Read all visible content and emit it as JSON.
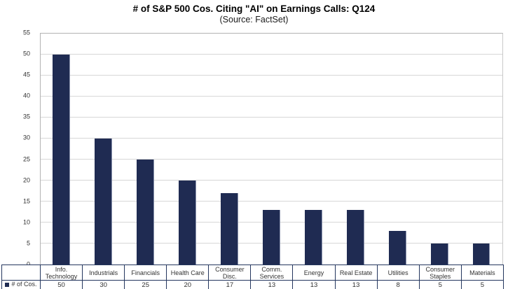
{
  "title": "# of S&P 500 Cos. Citing \"AI\" on Earnings Calls: Q124",
  "subtitle": "(Source: FactSet)",
  "legend_label": "# of Cos.",
  "colors": {
    "bar": "#1f2b52",
    "gridline": "#d7d7d7",
    "plot_border": "#b3b3b3",
    "table_border": "#24365e"
  },
  "chart_data": {
    "type": "bar",
    "title": "# of S&P 500 Cos. Citing \"AI\" on Earnings Calls: Q124",
    "subtitle": "(Source: FactSet)",
    "categories": [
      "Info. Technology",
      "Industrials",
      "Financials",
      "Health Care",
      "Consumer Disc.",
      "Comm. Services",
      "Energy",
      "Real Estate",
      "Utilities",
      "Consumer Staples",
      "Materials"
    ],
    "values": [
      50,
      30,
      25,
      20,
      17,
      13,
      13,
      13,
      8,
      5,
      5
    ],
    "series_name": "# of Cos.",
    "xlabel": "",
    "ylabel": "",
    "ylim": [
      0,
      55
    ],
    "ytick_step": 5,
    "grid": true,
    "legend_position": "bottom-left-table"
  }
}
